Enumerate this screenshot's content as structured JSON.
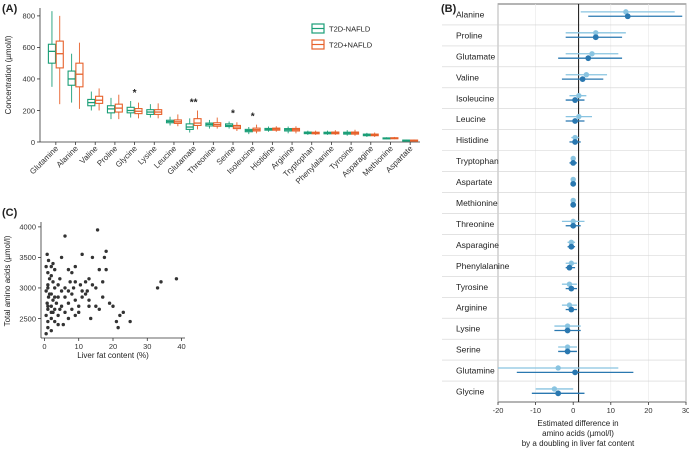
{
  "panels": {
    "a": "(A)",
    "b": "(B)",
    "c": "(C)"
  },
  "chart_data": [
    {
      "type": "box",
      "panel": "A",
      "ylabel": "Concentration (µmol/l)",
      "xlabel": "",
      "ylim": [
        0,
        850
      ],
      "yticks": [
        0,
        200,
        400,
        600,
        800
      ],
      "legend": {
        "position": "top-right",
        "entries": [
          "T2D-NAFLD",
          "T2D+NAFLD"
        ]
      },
      "colors": {
        "T2D-NAFLD": "#1a9e77",
        "T2D+NAFLD": "#e7612b"
      },
      "categories": [
        "Glutamine",
        "Alanine",
        "Valine",
        "Proline",
        "Glycine",
        "Lysine",
        "Leucine",
        "Glutamate",
        "Threonine",
        "Serine",
        "Isoleucine",
        "Histidine",
        "Arginine",
        "Tryptophan",
        "Phenylalanine",
        "Tyrosine",
        "Asparagine",
        "Methionine",
        "Aspartate"
      ],
      "annotations": [
        {
          "category": "Glycine",
          "text": "*"
        },
        {
          "category": "Glutamate",
          "text": "**"
        },
        {
          "category": "Serine",
          "text": "*"
        },
        {
          "category": "Isoleucine",
          "text": "*"
        }
      ],
      "series": [
        {
          "name": "T2D-NAFLD",
          "boxes": [
            [
              350,
              500,
              575,
              620,
              830
            ],
            [
              250,
              360,
              400,
              450,
              560
            ],
            [
              200,
              230,
              250,
              270,
              320
            ],
            [
              145,
              185,
              210,
              230,
              280
            ],
            [
              155,
              185,
              200,
              220,
              260
            ],
            [
              155,
              175,
              190,
              205,
              240
            ],
            [
              105,
              122,
              130,
              138,
              160
            ],
            [
              60,
              80,
              95,
              115,
              150
            ],
            [
              85,
              102,
              112,
              120,
              140
            ],
            [
              85,
              98,
              105,
              115,
              130
            ],
            [
              50,
              65,
              72,
              80,
              95
            ],
            [
              65,
              75,
              80,
              86,
              98
            ],
            [
              55,
              70,
              78,
              85,
              98
            ],
            [
              45,
              53,
              58,
              63,
              72
            ],
            [
              45,
              52,
              57,
              62,
              72
            ],
            [
              40,
              50,
              56,
              62,
              75
            ],
            [
              32,
              40,
              45,
              50,
              58
            ],
            [
              18,
              22,
              24,
              26,
              30
            ],
            [
              5,
              8,
              10,
              12,
              15
            ]
          ]
        },
        {
          "name": "T2D+NAFLD",
          "boxes": [
            [
              240,
              470,
              560,
              640,
              800
            ],
            [
              210,
              350,
              430,
              500,
              630
            ],
            [
              200,
              245,
              265,
              290,
              340
            ],
            [
              145,
              190,
              215,
              240,
              300
            ],
            [
              150,
              180,
              195,
              212,
              250
            ],
            [
              150,
              175,
              190,
              205,
              245
            ],
            [
              100,
              118,
              128,
              140,
              175
            ],
            [
              80,
              105,
              120,
              148,
              200
            ],
            [
              85,
              100,
              110,
              122,
              155
            ],
            [
              70,
              85,
              95,
              105,
              125
            ],
            [
              55,
              70,
              78,
              88,
              110
            ],
            [
              65,
              75,
              82,
              88,
              100
            ],
            [
              55,
              70,
              78,
              86,
              100
            ],
            [
              45,
              52,
              57,
              62,
              72
            ],
            [
              45,
              52,
              57,
              63,
              75
            ],
            [
              40,
              50,
              57,
              63,
              78
            ],
            [
              32,
              40,
              45,
              50,
              60
            ],
            [
              18,
              22,
              24,
              27,
              32
            ],
            [
              4,
              8,
              10,
              12,
              16
            ]
          ]
        }
      ]
    },
    {
      "type": "forest",
      "panel": "B",
      "xlabel": "Estimated difference in\namino acids (µmol/l)\nby a doubling in liver fat content",
      "xlim": [
        -20,
        30
      ],
      "xticks": [
        -20,
        -10,
        0,
        10,
        20,
        30
      ],
      "colors": {
        "light": "#89c4e1",
        "dark": "#2a78b0"
      },
      "rows": [
        {
          "label": "Alanine",
          "light": [
            14,
            2,
            27
          ],
          "dark": [
            14.5,
            4,
            29
          ]
        },
        {
          "label": "Proline",
          "light": [
            6,
            -2,
            14
          ],
          "dark": [
            6,
            -2,
            13
          ]
        },
        {
          "label": "Glutamate",
          "light": [
            5,
            -2,
            12
          ],
          "dark": [
            4,
            -4,
            13
          ]
        },
        {
          "label": "Valine",
          "light": [
            3.5,
            -2,
            9
          ],
          "dark": [
            2.5,
            -3,
            8
          ]
        },
        {
          "label": "Isoleucine",
          "light": [
            1.5,
            -1,
            3.5
          ],
          "dark": [
            0.5,
            -2,
            3
          ]
        },
        {
          "label": "Leucine",
          "light": [
            1.5,
            -2,
            5
          ],
          "dark": [
            0.5,
            -2,
            3
          ]
        },
        {
          "label": "Histidine",
          "light": [
            0.5,
            -0.5,
            1.5
          ],
          "dark": [
            0.5,
            -1,
            2
          ]
        },
        {
          "label": "Tryptophan",
          "light": [
            0,
            -0.5,
            0.5
          ],
          "dark": [
            0,
            -1,
            1
          ]
        },
        {
          "label": "Aspartate",
          "light": [
            0,
            -0.5,
            0.5
          ],
          "dark": [
            0,
            -0.5,
            0.5
          ]
        },
        {
          "label": "Methionine",
          "light": [
            0,
            -0.5,
            0.5
          ],
          "dark": [
            0,
            -0.5,
            0.5
          ]
        },
        {
          "label": "Threonine",
          "light": [
            0,
            -3,
            3
          ],
          "dark": [
            0,
            -2,
            2
          ]
        },
        {
          "label": "Asparagine",
          "light": [
            -0.5,
            -1.5,
            0.5
          ],
          "dark": [
            -0.5,
            -1.5,
            0.5
          ]
        },
        {
          "label": "Phenylalanine",
          "light": [
            -0.5,
            -2,
            1
          ],
          "dark": [
            -1,
            -2,
            0.5
          ]
        },
        {
          "label": "Tyrosine",
          "light": [
            -1,
            -3,
            1
          ],
          "dark": [
            -0.5,
            -2,
            1
          ]
        },
        {
          "label": "Arginine",
          "light": [
            -1,
            -3,
            1
          ],
          "dark": [
            -0.5,
            -2,
            1
          ]
        },
        {
          "label": "Lysine",
          "light": [
            -1.5,
            -5,
            2
          ],
          "dark": [
            -1.5,
            -5,
            2
          ]
        },
        {
          "label": "Serine",
          "light": [
            -1.5,
            -4,
            1
          ],
          "dark": [
            -1.5,
            -4,
            1
          ]
        },
        {
          "label": "Glutamine",
          "light": [
            -4,
            -20,
            12
          ],
          "dark": [
            0.5,
            -15,
            16
          ]
        },
        {
          "label": "Glycine",
          "light": [
            -5,
            -10,
            0
          ],
          "dark": [
            -4,
            -11,
            3
          ]
        }
      ]
    },
    {
      "type": "scatter",
      "panel": "C",
      "xlabel": "Liver fat content (%)",
      "ylabel": "Total amino acids (µmol/l)",
      "xlim": [
        -1,
        41
      ],
      "ylim": [
        2180,
        4080
      ],
      "xticks": [
        0,
        10,
        20,
        30,
        40
      ],
      "yticks": [
        2500,
        3000,
        3500,
        4000
      ],
      "color": "#333333",
      "points": [
        [
          0.5,
          2250
        ],
        [
          1,
          2350
        ],
        [
          1,
          2450
        ],
        [
          0.5,
          2550
        ],
        [
          1,
          2650
        ],
        [
          0.8,
          2750
        ],
        [
          1.2,
          2850
        ],
        [
          0.5,
          2950
        ],
        [
          1,
          3050
        ],
        [
          1.5,
          3150
        ],
        [
          1,
          3250
        ],
        [
          0.5,
          3350
        ],
        [
          1.2,
          3450
        ],
        [
          0.8,
          3550
        ],
        [
          2,
          2300
        ],
        [
          2,
          2500
        ],
        [
          2.5,
          2600
        ],
        [
          2,
          2700
        ],
        [
          2.5,
          2800
        ],
        [
          2,
          2900
        ],
        [
          3,
          3000
        ],
        [
          2.5,
          3100
        ],
        [
          2,
          3200
        ],
        [
          3,
          3300
        ],
        [
          2.5,
          3400
        ],
        [
          3,
          2450
        ],
        [
          3.5,
          2750
        ],
        [
          4,
          2550
        ],
        [
          4,
          2850
        ],
        [
          4.5,
          2650
        ],
        [
          4,
          3050
        ],
        [
          5,
          2950
        ],
        [
          4.5,
          3150
        ],
        [
          5,
          3500
        ],
        [
          5.5,
          2400
        ],
        [
          5,
          2700
        ],
        [
          6,
          3850
        ],
        [
          6,
          2600
        ],
        [
          6,
          3000
        ],
        [
          7,
          2750
        ],
        [
          7,
          2500
        ],
        [
          7.5,
          3100
        ],
        [
          7,
          3300
        ],
        [
          8,
          2650
        ],
        [
          8,
          2900
        ],
        [
          8.5,
          3000
        ],
        [
          9,
          2800
        ],
        [
          9,
          3100
        ],
        [
          9,
          3350
        ],
        [
          10,
          2700
        ],
        [
          10,
          2600
        ],
        [
          10.5,
          3050
        ],
        [
          11,
          2850
        ],
        [
          11,
          3550
        ],
        [
          12,
          2900
        ],
        [
          12,
          3100
        ],
        [
          12.5,
          2950
        ],
        [
          13,
          2800
        ],
        [
          13,
          3150
        ],
        [
          13.5,
          2500
        ],
        [
          14,
          3050
        ],
        [
          14,
          3500
        ],
        [
          15,
          2700
        ],
        [
          15,
          3000
        ],
        [
          15.5,
          3950
        ],
        [
          16,
          2650
        ],
        [
          16,
          3300
        ],
        [
          17,
          2850
        ],
        [
          17,
          3100
        ],
        [
          17.5,
          3500
        ],
        [
          18,
          3600
        ],
        [
          18,
          3300
        ],
        [
          19,
          2750
        ],
        [
          20,
          2700
        ],
        [
          21,
          2450
        ],
        [
          21.5,
          2350
        ],
        [
          22,
          2550
        ],
        [
          23,
          2600
        ],
        [
          25,
          2450
        ],
        [
          33,
          3000
        ],
        [
          34,
          3100
        ],
        [
          38.5,
          3150
        ],
        [
          1,
          2700
        ],
        [
          1.5,
          2900
        ],
        [
          2,
          3350
        ],
        [
          3,
          2650
        ],
        [
          6,
          2850
        ],
        [
          8,
          3250
        ],
        [
          11,
          2950
        ],
        [
          13,
          2700
        ],
        [
          3,
          2850
        ],
        [
          2,
          2600
        ],
        [
          1,
          3000
        ],
        [
          4,
          2400
        ],
        [
          7,
          2950
        ],
        [
          9,
          2550
        ]
      ]
    }
  ]
}
